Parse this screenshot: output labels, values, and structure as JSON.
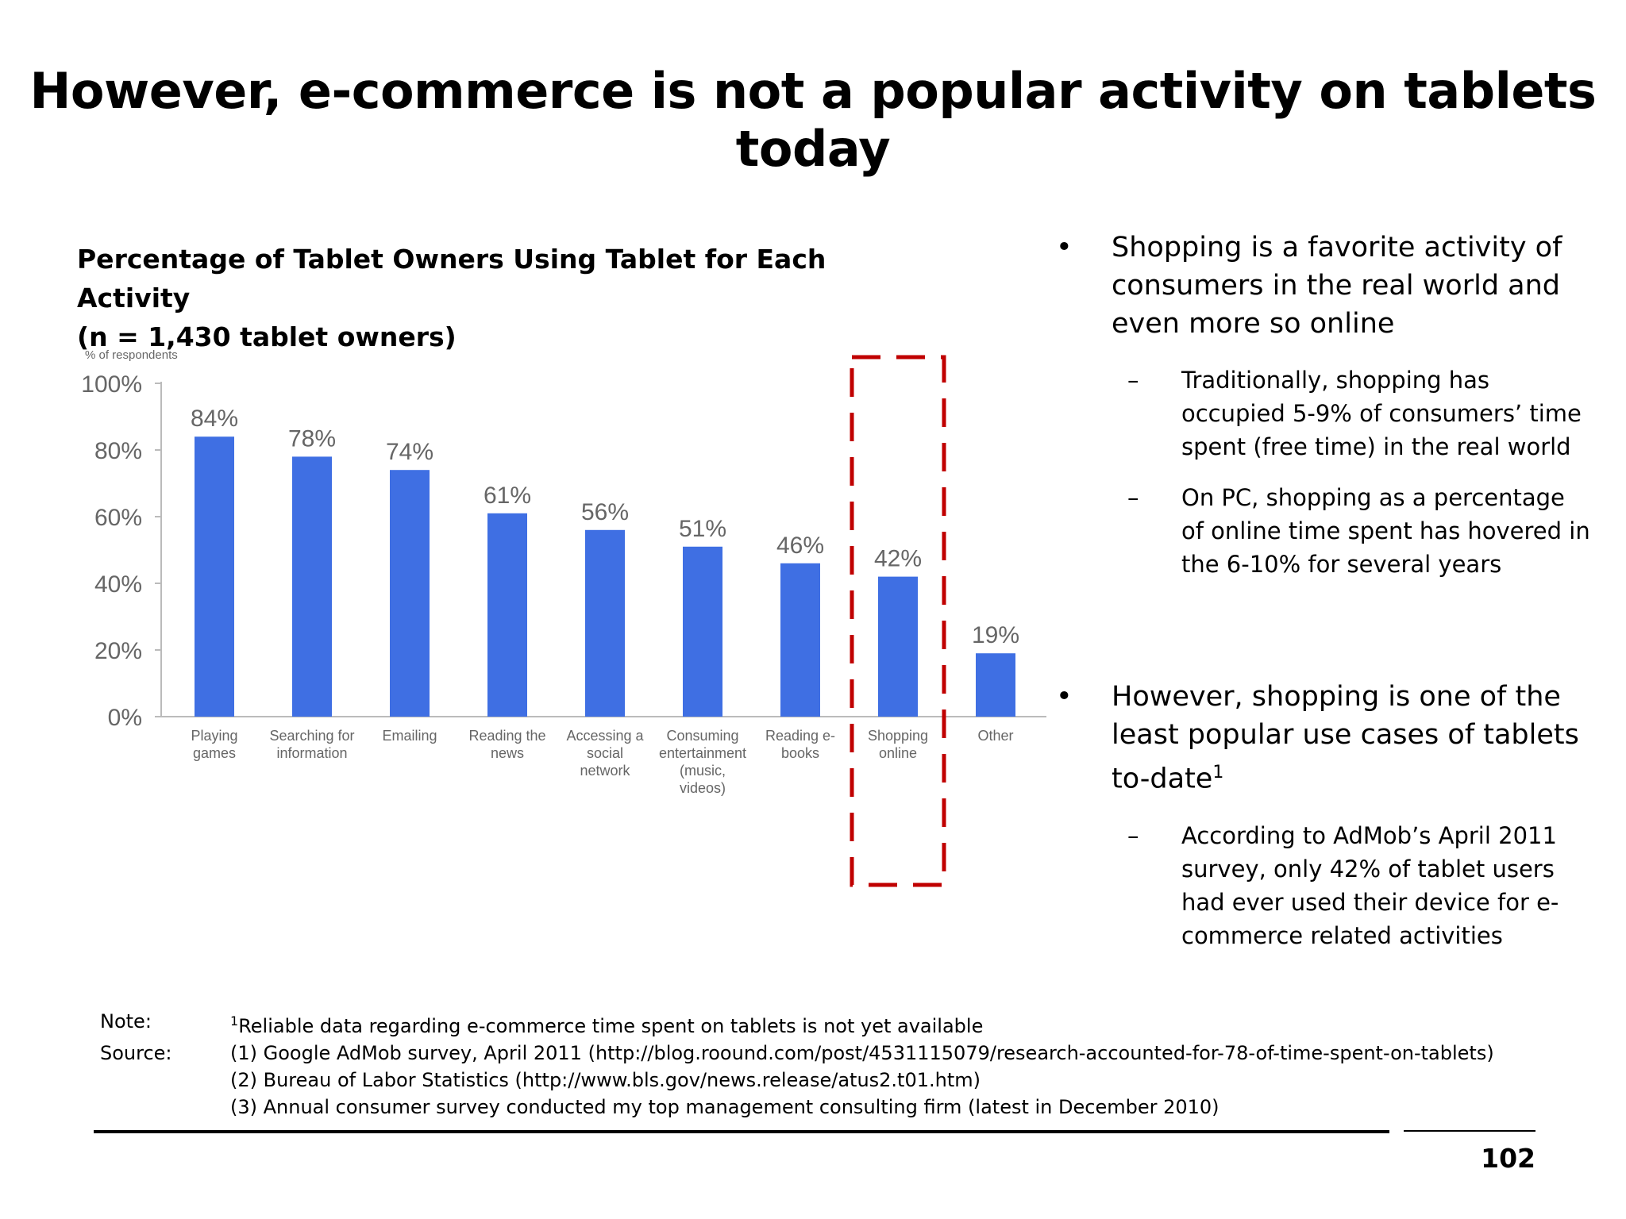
{
  "title": "However, e-commerce is not a popular activity on tablets today",
  "chart_title": {
    "line1": "Percentage of Tablet Owners Using Tablet for Each Activity",
    "line2": "(n = 1,430 tablet owners)"
  },
  "chart_data": {
    "type": "bar",
    "ylabel": "% of respondents",
    "ylim": [
      0,
      100
    ],
    "yticks": [
      "0%",
      "20%",
      "40%",
      "60%",
      "80%",
      "100%"
    ],
    "categories": [
      [
        "Playing",
        "games"
      ],
      [
        "Searching for",
        "information"
      ],
      [
        "Emailing"
      ],
      [
        "Reading the",
        "news"
      ],
      [
        "Accessing a",
        "social",
        "network"
      ],
      [
        "Consuming",
        "entertainment",
        "(music,",
        "videos)"
      ],
      [
        "Reading e-",
        "books"
      ],
      [
        "Shopping",
        "online"
      ],
      [
        "Other"
      ]
    ],
    "values": [
      84,
      78,
      74,
      61,
      56,
      51,
      46,
      42,
      19
    ],
    "value_labels": [
      "84%",
      "78%",
      "74%",
      "61%",
      "56%",
      "51%",
      "46%",
      "42%",
      "19%"
    ],
    "bar_color": "#3f6fe3",
    "highlight_color": "#c00000",
    "highlight_category_index": 7,
    "grid": false,
    "legend": "none"
  },
  "bullets": [
    {
      "text": "Shopping is a favorite activity of consumers in the real world and even more so online",
      "subs": [
        "Traditionally, shopping has occupied 5-9% of consumers’ time spent (free time) in the real world",
        "On PC, shopping as a percentage of online time spent has hovered in the 6-10% for several years"
      ]
    },
    {
      "text": "However, shopping is one of the least popular use cases of tablets to-date",
      "sup": "1",
      "subs": [
        "According to AdMob’s April 2011 survey, only 42% of tablet users had ever used their device for e-commerce related activities"
      ]
    }
  ],
  "footnotes": {
    "note_label": "Note:",
    "note_sup": "1",
    "note_text": "Reliable data regarding e-commerce time spent on tablets is not yet available",
    "source_label": "Source:",
    "sources": [
      "(1) Google AdMob survey, April 2011 (http://blog.roound.com/post/4531115079/research-accounted-for-78-of-time-spent-on-tablets)",
      "(2) Bureau of Labor Statistics (http://www.bls.gov/news.release/atus2.t01.htm)",
      "(3) Annual consumer survey conducted my top management consulting firm (latest in December 2010)"
    ]
  },
  "page_number": "102"
}
